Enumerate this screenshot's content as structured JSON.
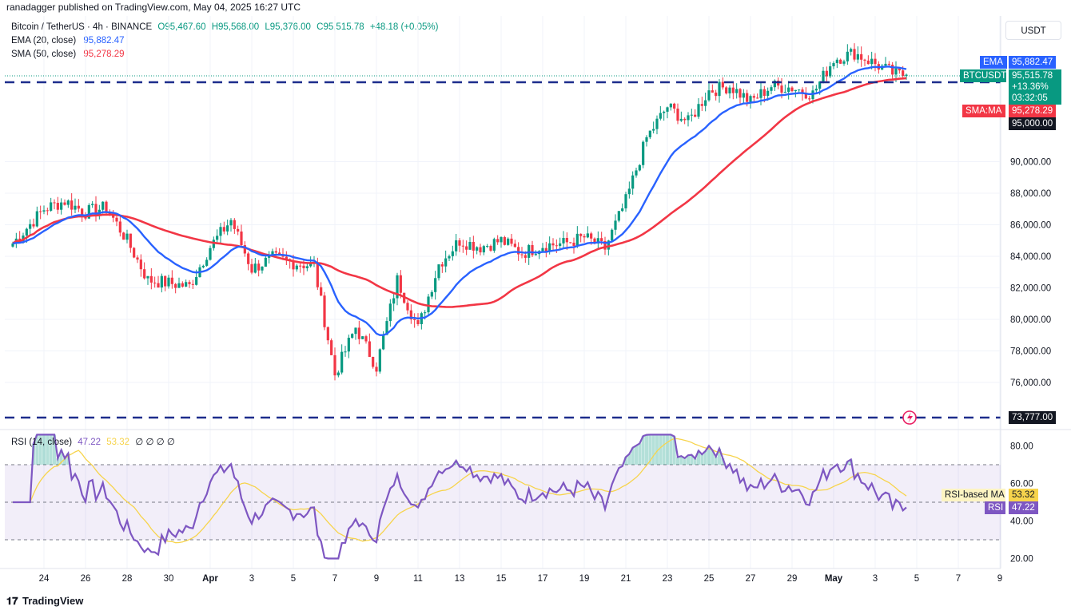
{
  "header": {
    "publisher": "ranadagger published on TradingView.com, May 04, 2025 16:27 UTC"
  },
  "symbol": {
    "title": "Bitcoin / TetherUS · 4h · BINANCE",
    "open": "O95,467.60",
    "high": "H95,568.00",
    "low": "L95,376.00",
    "close": "C95,515.78",
    "change": "+48.18 (+0.05%)"
  },
  "legend": {
    "ema_label": "EMA (20, close)",
    "ema_value": "95,882.47",
    "sma_label": "SMA (50, close)",
    "sma_value": "95,278.29"
  },
  "currency": "USDT",
  "price_tags": {
    "ema_tag": "EMA",
    "ema_value": "95,882.47",
    "btc_tag": "BTCUSDT",
    "btc_value": "95,515.78",
    "btc_pct": "+13.36%",
    "btc_timer": "03:32:05",
    "sma_tag": "SMA:MA",
    "sma_value": "95,278.29",
    "level_upper": "95,000.00",
    "level_lower": "73,777.00"
  },
  "rsi": {
    "legend_label": "RSI (14, close)",
    "value": "47.22",
    "ma_value": "53.32",
    "extras": "∅ ∅ ∅ ∅",
    "ma_tag": "RSI-based MA",
    "ma_tag_value": "53.32",
    "rsi_tag": "RSI",
    "rsi_tag_value": "47.22",
    "ticks": [
      "80.00",
      "60.00",
      "40.00",
      "20.00"
    ]
  },
  "footer": {
    "brand": "TradingView"
  },
  "colors": {
    "up": "#089981",
    "down": "#f23645",
    "ema": "#2962ff",
    "sma": "#f23645",
    "rsi": "#7e57c2",
    "rsi_ma": "#f7d44c",
    "level": "#1d2d8c"
  },
  "chart_data": [
    {
      "type": "candlestick",
      "title": "Bitcoin / TetherUS · 4h · BINANCE",
      "x_ticks": [
        "24",
        "26",
        "28",
        "30",
        "Apr",
        "3",
        "5",
        "7",
        "9",
        "11",
        "13",
        "15",
        "17",
        "19",
        "21",
        "23",
        "25",
        "27",
        "29",
        "May",
        "3",
        "5",
        "7",
        "9"
      ],
      "y_ticks": [
        "90,000.00",
        "88,000.00",
        "86,000.00",
        "84,000.00",
        "82,000.00",
        "80,000.00",
        "78,000.00",
        "76,000.00"
      ],
      "ylim": [
        73000,
        98500
      ],
      "close_path_anchors": [
        [
          "Mar 22",
          84100
        ],
        [
          "Mar 24",
          87000
        ],
        [
          "Mar 25",
          87500
        ],
        [
          "Mar 26",
          86800
        ],
        [
          "Mar 27",
          87100
        ],
        [
          "Mar 28",
          85000
        ],
        [
          "Mar 29",
          82500
        ],
        [
          "Mar 30",
          82300
        ],
        [
          "Mar 31",
          82100
        ],
        [
          "Apr 1",
          84600
        ],
        [
          "Apr 2",
          86300
        ],
        [
          "Apr 3",
          83200
        ],
        [
          "Apr 4",
          83900
        ],
        [
          "Apr 5",
          83600
        ],
        [
          "Apr 6",
          83400
        ],
        [
          "Apr 7",
          76500
        ],
        [
          "Apr 8",
          79500
        ],
        [
          "Apr 9",
          77000
        ],
        [
          "Apr 10",
          82500
        ],
        [
          "Apr 11",
          79400
        ],
        [
          "Apr 12",
          83500
        ],
        [
          "Apr 13",
          85000
        ],
        [
          "Apr 14",
          84600
        ],
        [
          "Apr 15",
          85000
        ],
        [
          "Apr 16",
          84200
        ],
        [
          "Apr 17",
          84700
        ],
        [
          "Apr 18",
          84800
        ],
        [
          "Apr 19",
          85200
        ],
        [
          "Apr 20",
          84500
        ],
        [
          "Apr 21",
          87500
        ],
        [
          "Apr 22",
          91500
        ],
        [
          "Apr 23",
          93500
        ],
        [
          "Apr 24",
          92500
        ],
        [
          "Apr 25",
          94500
        ],
        [
          "Apr 26",
          94800
        ],
        [
          "Apr 27",
          93800
        ],
        [
          "Apr 28",
          94800
        ],
        [
          "Apr 29",
          94700
        ],
        [
          "Apr 30",
          94300
        ],
        [
          "May 1",
          96500
        ],
        [
          "May 2",
          96900
        ],
        [
          "May 3",
          96200
        ],
        [
          "May 4",
          95516
        ]
      ],
      "series": [
        {
          "name": "EMA (20, close)",
          "last": 95882.47
        },
        {
          "name": "SMA (50, close)",
          "last": 95278.29
        }
      ],
      "levels": [
        95000,
        73777
      ]
    },
    {
      "type": "line",
      "title": "RSI (14, close)",
      "ylim": [
        15,
        88
      ],
      "bands": [
        70,
        50,
        30
      ],
      "series": [
        {
          "name": "RSI",
          "last": 47.22
        },
        {
          "name": "RSI-based MA",
          "last": 53.32
        }
      ]
    }
  ]
}
